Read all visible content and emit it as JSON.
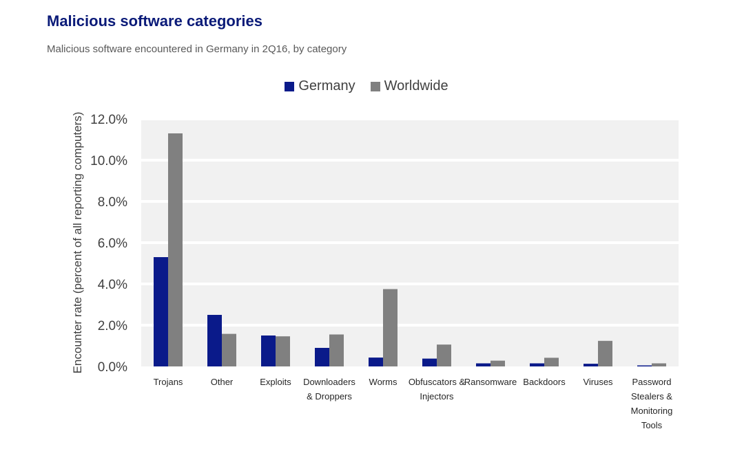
{
  "header": {
    "title": "Malicious software categories",
    "subtitle": "Malicious software encountered in Germany in 2Q16, by category"
  },
  "colors": {
    "germany": "#0a1a8a",
    "worldwide": "#808080",
    "plot_bg": "#f1f1f1",
    "grid": "#ffffff"
  },
  "chart_data": {
    "type": "bar",
    "title": "Malicious software categories",
    "subtitle": "Malicious software encountered in Germany in 2Q16, by category",
    "xlabel": "",
    "ylabel": "Encounter rate (percent of all reporting computers)",
    "ylim": [
      0,
      12
    ],
    "yticks": [
      "0.0%",
      "2.0%",
      "4.0%",
      "6.0%",
      "8.0%",
      "10.0%",
      "12.0%"
    ],
    "grid": true,
    "legend_position": "top-center",
    "categories": [
      [
        "Trojans"
      ],
      [
        "Other"
      ],
      [
        "Exploits"
      ],
      [
        "Downloaders",
        "& Droppers"
      ],
      [
        "Worms"
      ],
      [
        "Obfuscators &",
        "Injectors"
      ],
      [
        "Ransomware"
      ],
      [
        "Backdoors"
      ],
      [
        "Viruses"
      ],
      [
        "Password",
        "Stealers &",
        "Monitoring",
        "Tools"
      ]
    ],
    "series": [
      {
        "name": "Germany",
        "values": [
          5.3,
          2.5,
          1.5,
          0.9,
          0.43,
          0.38,
          0.15,
          0.15,
          0.13,
          0.05
        ]
      },
      {
        "name": "Worldwide",
        "values": [
          11.3,
          1.58,
          1.46,
          1.55,
          3.75,
          1.06,
          0.28,
          0.42,
          1.24,
          0.15
        ]
      }
    ]
  }
}
